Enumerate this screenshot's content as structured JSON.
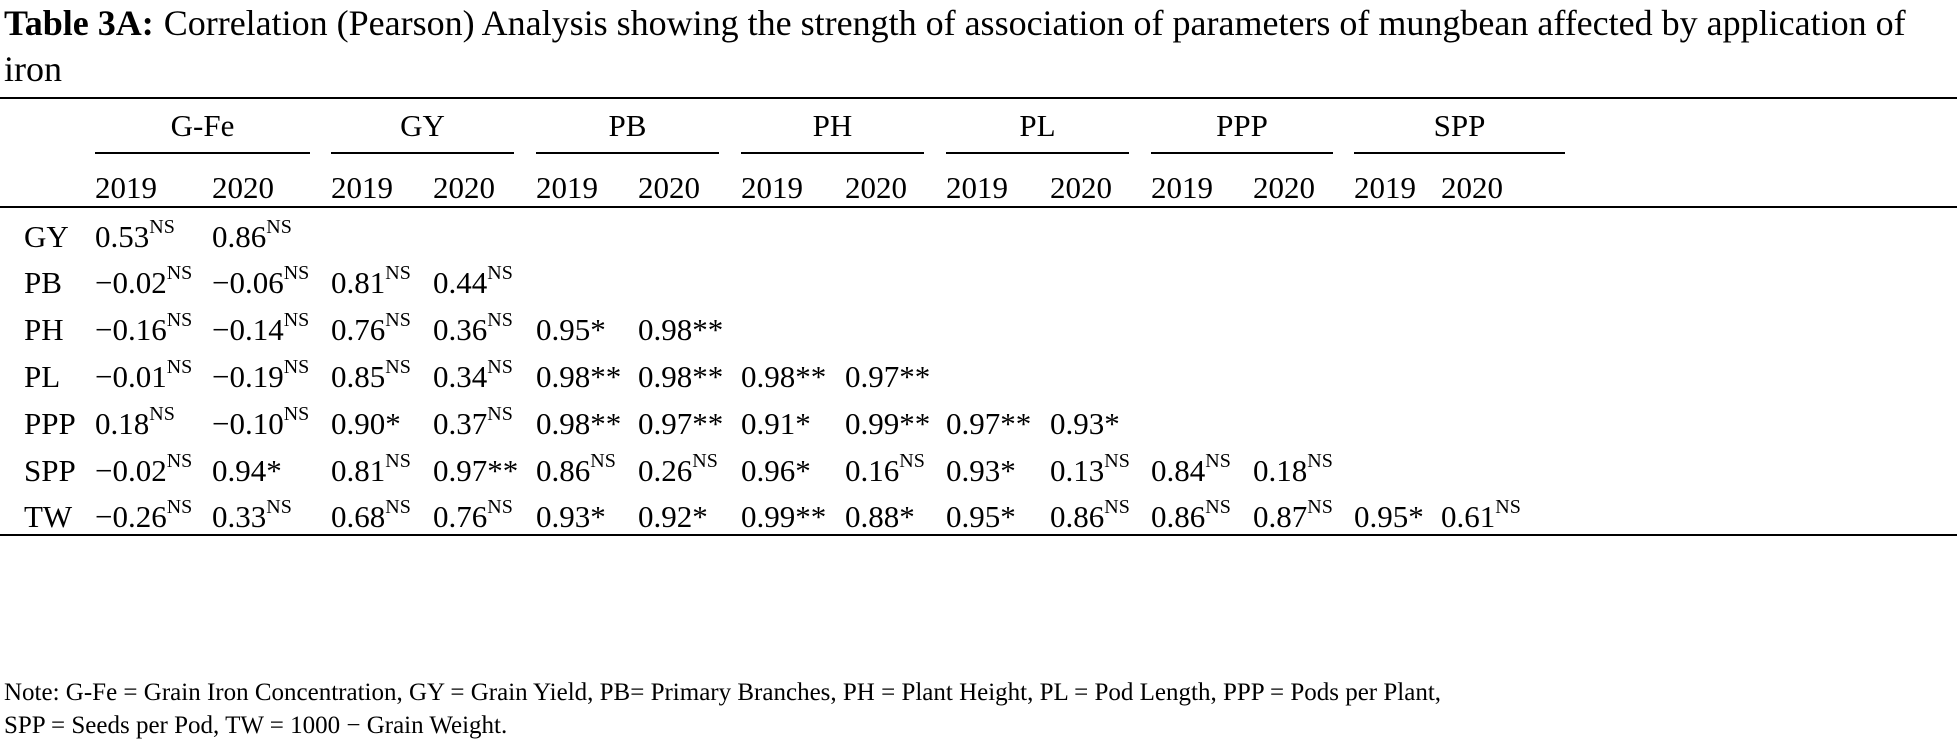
{
  "caption": {
    "label": "Table 3A:",
    "text": "Correlation (Pearson) Analysis showing the strength of association of parameters of mungbean affected by application of iron"
  },
  "table": {
    "groups": [
      "G-Fe",
      "GY",
      "PB",
      "PH",
      "PL",
      "PPP",
      "SPP"
    ],
    "years": [
      "2019",
      "2020"
    ],
    "rows": [
      {
        "label": "GY",
        "cells": [
          {
            "v": "0.53",
            "s": "NS"
          },
          {
            "v": "0.86",
            "s": "NS"
          }
        ]
      },
      {
        "label": "PB",
        "cells": [
          {
            "v": "−0.02",
            "s": "NS"
          },
          {
            "v": "−0.06",
            "s": "NS"
          },
          {
            "v": "0.81",
            "s": "NS"
          },
          {
            "v": "0.44",
            "s": "NS"
          }
        ]
      },
      {
        "label": "PH",
        "cells": [
          {
            "v": "−0.16",
            "s": "NS"
          },
          {
            "v": "−0.14",
            "s": "NS"
          },
          {
            "v": "0.76",
            "s": "NS"
          },
          {
            "v": "0.36",
            "s": "NS"
          },
          {
            "v": "0.95*",
            "s": ""
          },
          {
            "v": "0.98**",
            "s": ""
          }
        ]
      },
      {
        "label": "PL",
        "cells": [
          {
            "v": "−0.01",
            "s": "NS"
          },
          {
            "v": "−0.19",
            "s": "NS"
          },
          {
            "v": "0.85",
            "s": "NS"
          },
          {
            "v": "0.34",
            "s": "NS"
          },
          {
            "v": "0.98**",
            "s": ""
          },
          {
            "v": "0.98**",
            "s": ""
          },
          {
            "v": "0.98**",
            "s": ""
          },
          {
            "v": "0.97**",
            "s": ""
          }
        ]
      },
      {
        "label": "PPP",
        "cells": [
          {
            "v": "0.18",
            "s": "NS"
          },
          {
            "v": "−0.10",
            "s": "NS"
          },
          {
            "v": "0.90*",
            "s": ""
          },
          {
            "v": "0.37",
            "s": "NS"
          },
          {
            "v": "0.98**",
            "s": ""
          },
          {
            "v": "0.97**",
            "s": ""
          },
          {
            "v": "0.91*",
            "s": ""
          },
          {
            "v": "0.99**",
            "s": ""
          },
          {
            "v": "0.97**",
            "s": ""
          },
          {
            "v": "0.93*",
            "s": ""
          }
        ]
      },
      {
        "label": "SPP",
        "cells": [
          {
            "v": "−0.02",
            "s": "NS"
          },
          {
            "v": "0.94*",
            "s": ""
          },
          {
            "v": "0.81",
            "s": "NS"
          },
          {
            "v": "0.97**",
            "s": ""
          },
          {
            "v": "0.86",
            "s": "NS"
          },
          {
            "v": "0.26",
            "s": "NS"
          },
          {
            "v": "0.96*",
            "s": ""
          },
          {
            "v": "0.16",
            "s": "NS"
          },
          {
            "v": "0.93*",
            "s": ""
          },
          {
            "v": "0.13",
            "s": "NS"
          },
          {
            "v": "0.84",
            "s": "NS"
          },
          {
            "v": "0.18",
            "s": "NS"
          }
        ]
      },
      {
        "label": "TW",
        "cells": [
          {
            "v": "−0.26",
            "s": "NS"
          },
          {
            "v": "0.33",
            "s": "NS"
          },
          {
            "v": "0.68",
            "s": "NS"
          },
          {
            "v": "0.76",
            "s": "NS"
          },
          {
            "v": "0.93*",
            "s": ""
          },
          {
            "v": "0.92*",
            "s": ""
          },
          {
            "v": "0.99**",
            "s": ""
          },
          {
            "v": "0.88*",
            "s": ""
          },
          {
            "v": "0.95*",
            "s": ""
          },
          {
            "v": "0.86",
            "s": "NS"
          },
          {
            "v": "0.86",
            "s": "NS"
          },
          {
            "v": "0.87",
            "s": "NS"
          },
          {
            "v": "0.95*",
            "s": ""
          },
          {
            "v": "0.61",
            "s": "NS"
          }
        ]
      }
    ]
  },
  "note": {
    "line1": "Note: G-Fe = Grain Iron Concentration, GY = Grain Yield, PB= Primary Branches, PH = Plant Height, PL = Pod Length, PPP = Pods per Plant,",
    "line2": "SPP = Seeds per Pod, TW = 1000 − Grain Weight."
  }
}
